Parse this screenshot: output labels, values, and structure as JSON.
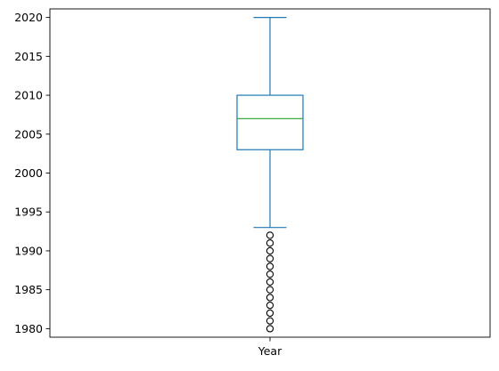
{
  "chart_data": {
    "type": "box",
    "categories": [
      "Year"
    ],
    "ylim": [
      1978.9,
      2021.1
    ],
    "yticks": [
      1980,
      1985,
      1990,
      1995,
      2000,
      2005,
      2010,
      2015,
      2020
    ],
    "grid": false,
    "series": [
      {
        "category": "Year",
        "whisker_low": 1993,
        "q1": 2003,
        "median": 2007,
        "q3": 2010,
        "whisker_high": 2020,
        "outliers": [
          1980,
          1981,
          1982,
          1983,
          1984,
          1985,
          1986,
          1987,
          1988,
          1989,
          1990,
          1991,
          1992
        ]
      }
    ],
    "colors": {
      "box": "#1f77b4",
      "median": "#2ca02c",
      "outlier_edge": "#000000",
      "axes": "#000000"
    }
  }
}
